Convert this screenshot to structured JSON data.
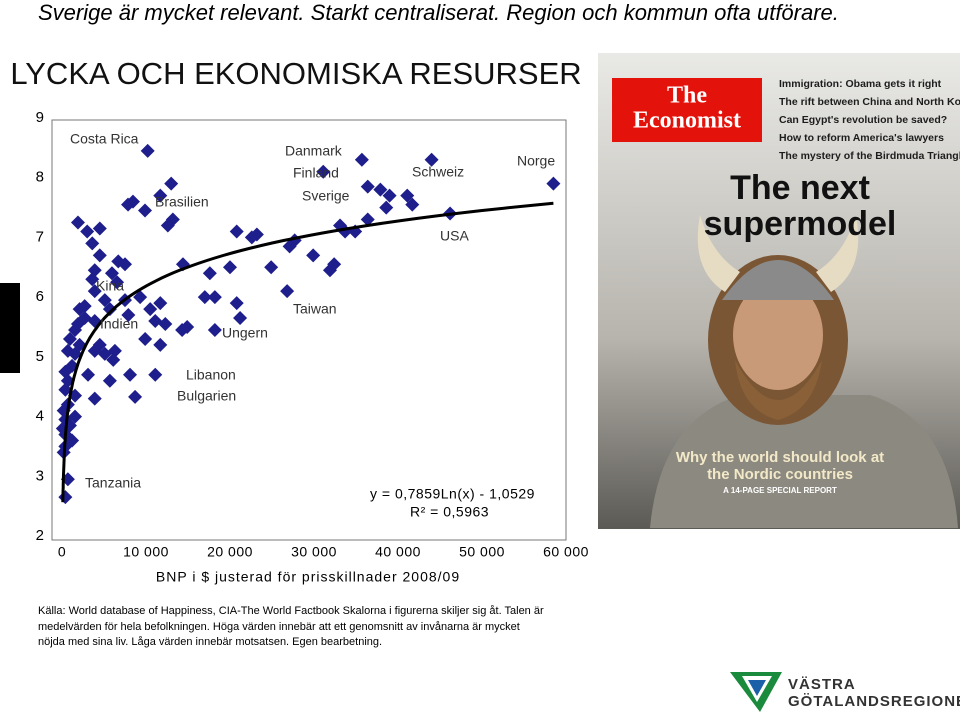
{
  "slide": {
    "heading": "Sverige är mycket relevant. Starkt centraliserat. Region och kommun ofta utförare.",
    "source": [
      "Källa: World database of Happiness, CIA-The World Factbook Skalorna i figurerna skiljer sig åt. Talen är",
      "medelvärden för hela befolkningen. Höga värden innebär att ett genomsnitt av invånarna är mycket",
      "nöjda med sina liv. Låga värden innebär motsatsen. Egen bearbetning."
    ],
    "logo": [
      "VÄSTRA",
      "GÖTALANDSREGIONEN"
    ]
  },
  "cover": {
    "masthead": [
      "The",
      "Economist"
    ],
    "teasers": [
      "Immigration: Obama gets it right",
      "The rift between China and North Korea",
      "Can Egypt's revolution be saved?",
      "How to reform America's lawyers",
      "The mystery of the Birdmuda Triangle"
    ],
    "headline": [
      "The next",
      "supermodel"
    ],
    "strap": [
      "Why the world should look at",
      "the Nordic countries"
    ],
    "report": "A 14-PAGE SPECIAL REPORT"
  },
  "chart_data": {
    "type": "scatter",
    "title": "LYCKA OCH EKONOMISKA RESURSER",
    "x_label": "BNP i $ justerad för prisskillnader 2008/09",
    "color": "#1e1e8c",
    "x": [
      10200,
      8450,
      7860,
      9880,
      13000,
      11700,
      13200,
      12600,
      4500,
      3600,
      3000,
      1900,
      6700,
      7500,
      5950,
      6550,
      4500,
      14400,
      17600,
      20000,
      23200,
      22600,
      20800,
      24900,
      27700,
      27100,
      29900,
      31900,
      32400,
      33100,
      33700,
      34900,
      35700,
      31100,
      36400,
      37900,
      39000,
      38600,
      41100,
      41700,
      36400,
      44000,
      46200,
      58500,
      3900,
      3600,
      3900,
      2700,
      2100,
      1550,
      1900,
      2700,
      3900,
      5700,
      5100,
      4500,
      7500,
      7900,
      9300,
      10500,
      11700,
      11100,
      11700,
      14300,
      14900,
      17000,
      18200,
      18200,
      20800,
      21200,
      26800,
      950,
      700,
      1550,
      1200,
      400,
      700,
      400,
      2100,
      3900,
      6300,
      5100,
      6100,
      3100,
      5700,
      8100,
      8700,
      11100,
      3900,
      1550,
      700,
      200,
      400,
      100,
      400,
      950,
      1550,
      1200,
      400,
      200,
      700,
      400,
      9900,
      12300
    ],
    "values": [
      8.45,
      7.6,
      7.55,
      7.45,
      7.9,
      7.7,
      7.3,
      7.2,
      7.15,
      6.9,
      7.1,
      7.25,
      6.6,
      6.55,
      6.4,
      6.25,
      6.7,
      6.55,
      6.4,
      6.5,
      7.05,
      7.0,
      7.1,
      6.5,
      6.95,
      6.85,
      6.7,
      6.45,
      6.55,
      7.2,
      7.1,
      7.1,
      8.3,
      8.1,
      7.85,
      7.8,
      7.7,
      7.5,
      7.7,
      7.55,
      7.3,
      8.3,
      7.4,
      7.9,
      6.45,
      6.3,
      6.1,
      5.85,
      5.8,
      5.45,
      5.55,
      5.65,
      5.6,
      5.8,
      5.95,
      5.2,
      5.95,
      5.7,
      6.0,
      5.8,
      5.9,
      5.6,
      5.2,
      5.45,
      5.5,
      6.0,
      6.0,
      5.45,
      5.9,
      5.65,
      6.1,
      5.3,
      5.1,
      5.05,
      4.85,
      4.75,
      4.6,
      4.45,
      5.2,
      5.1,
      5.1,
      5.05,
      4.95,
      4.7,
      4.6,
      4.7,
      4.33,
      4.7,
      4.3,
      4.35,
      4.2,
      4.1,
      3.95,
      3.8,
      3.7,
      3.85,
      4.0,
      3.6,
      3.5,
      3.4,
      2.95,
      2.65,
      5.3,
      5.55
    ],
    "xlim": [
      0,
      60000
    ],
    "ylim": [
      2,
      9
    ],
    "xticks": [
      0,
      {
        "value": 10000,
        "label": "10 000"
      },
      {
        "value": 20000,
        "label": "20 000"
      },
      {
        "value": 30000,
        "label": "30 000"
      },
      {
        "value": 40000,
        "label": "40 000"
      },
      {
        "value": 50000,
        "label": "50 000"
      },
      {
        "value": 60000,
        "label": "60 000"
      }
    ],
    "yticks": [
      2,
      3,
      4,
      5,
      6,
      7,
      8,
      9
    ],
    "trendline": {
      "type": "log",
      "a": 0.7859,
      "b": -1.0529,
      "color": "#000000",
      "equation": "y = 0,7859Ln(x) - 1,0529",
      "r2": "R² = 0,5963"
    },
    "annotations": [
      "Costa Rica",
      "Brasilien",
      "Danmark",
      "Finland",
      "Sverige",
      "Schweiz",
      "Norge",
      "USA",
      "Kina",
      "Indien",
      "Ungern",
      "Taiwan",
      "Libanon",
      "Bulgarien",
      "Tanzania"
    ]
  }
}
